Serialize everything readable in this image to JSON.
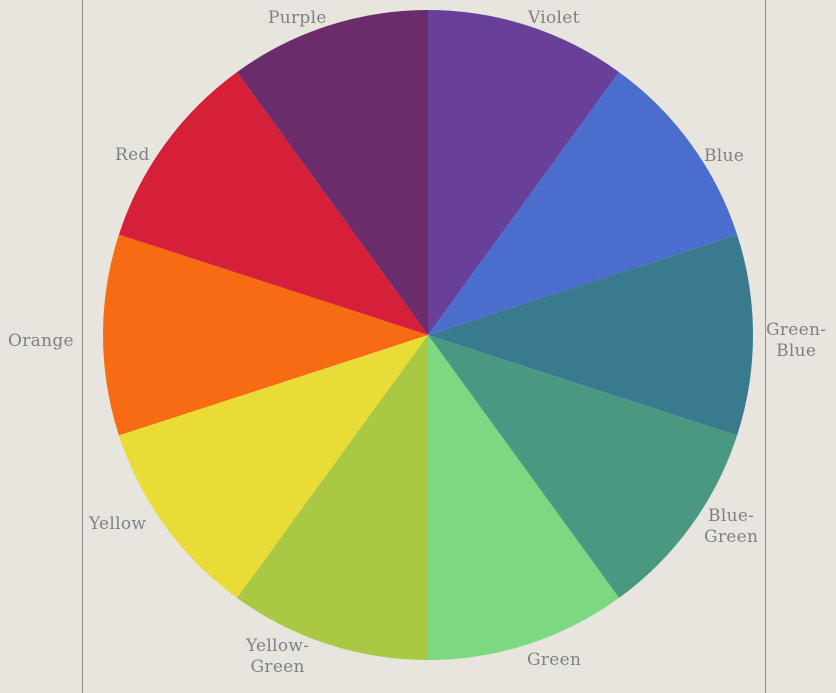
{
  "background": "#e7e5de",
  "segments": [
    {
      "label": "Violet",
      "color": "#68409a"
    },
    {
      "label": "Blue",
      "color": "#4a6dce"
    },
    {
      "label": "Green-\nBlue",
      "color": "#3a7a8e"
    },
    {
      "label": "Blue-\nGreen",
      "color": "#4b9882"
    },
    {
      "label": "Green",
      "color": "#7dd882"
    },
    {
      "label": "Yellow-\nGreen",
      "color": "#a9c843"
    },
    {
      "label": "Yellow",
      "color": "#eadc36"
    },
    {
      "label": "Orange",
      "color": "#f76c12"
    },
    {
      "label": "Red",
      "color": "#d6203a"
    },
    {
      "label": "Purple",
      "color": "#6a2c6a"
    }
  ]
}
